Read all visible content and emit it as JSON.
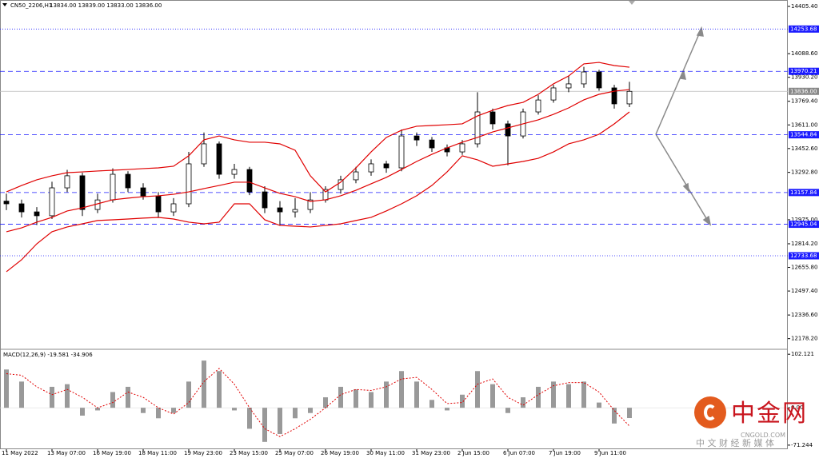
{
  "header": {
    "symbol": "CN50_2206,H1",
    "ohlc": "13834.00 13839.00 13833.00 13836.00"
  },
  "watermark": {
    "logo": "中金网",
    "site": "CNGOLD.COM",
    "tagline": "中 文 财 经 新 媒 体"
  },
  "chart_data": {
    "type": "candlestick",
    "categories": [
      "11 May 2022",
      null,
      null,
      "13 May 07:00",
      null,
      null,
      "16 May 19:00",
      null,
      null,
      "18 May 11:00",
      null,
      null,
      "19 May 23:00",
      null,
      null,
      "23 May 15:00",
      null,
      null,
      "25 May 07:00",
      null,
      null,
      "26 May 19:00",
      null,
      null,
      "30 May 11:00",
      null,
      null,
      "31 May 23:00",
      null,
      null,
      "2 Jun 15:00",
      null,
      null,
      "6 Jun 07:00",
      null,
      null,
      "7 Jun 19:00",
      null,
      null,
      "9 Jun 11:00",
      null,
      null
    ],
    "open": [
      13100,
      13082,
      13028,
      13002,
      13189,
      13270,
      13044,
      13108,
      13280,
      13189,
      13135,
      13028,
      13082,
      13350,
      13484,
      13280,
      13312,
      13162,
      13055,
      13028,
      13044,
      13108,
      13178,
      13243,
      13296,
      13350,
      13323,
      13537,
      13510,
      13457,
      13430,
      13484,
      13698,
      13618,
      13537,
      13698,
      13778,
      13859,
      13886,
      13966,
      13859,
      13752
    ],
    "high": [
      13150,
      13110,
      13060,
      13230,
      13310,
      13290,
      13150,
      13320,
      13300,
      13220,
      13160,
      13120,
      13430,
      13560,
      13500,
      13350,
      13330,
      13200,
      13100,
      13120,
      13160,
      13200,
      13270,
      13330,
      13380,
      13370,
      13580,
      13560,
      13530,
      13480,
      13510,
      13830,
      13720,
      13640,
      13720,
      13810,
      13880,
      13940,
      14000,
      13980,
      13880,
      13900
    ],
    "low": [
      13040,
      12990,
      12940,
      12980,
      13160,
      13000,
      13020,
      13090,
      13160,
      13110,
      12990,
      13000,
      13060,
      13330,
      13250,
      13250,
      13140,
      13020,
      12940,
      12990,
      13020,
      13090,
      13150,
      13220,
      13270,
      13290,
      13300,
      13470,
      13430,
      13400,
      13410,
      13460,
      13580,
      13340,
      13520,
      13680,
      13760,
      13830,
      13860,
      13840,
      13720,
      13730
    ],
    "close": [
      13082,
      13028,
      13002,
      13189,
      13270,
      13044,
      13108,
      13280,
      13189,
      13135,
      13028,
      13082,
      13350,
      13484,
      13280,
      13312,
      13162,
      13055,
      13028,
      13044,
      13108,
      13178,
      13243,
      13296,
      13350,
      13323,
      13537,
      13510,
      13457,
      13430,
      13484,
      13698,
      13618,
      13537,
      13698,
      13778,
      13859,
      13886,
      13966,
      13859,
      13752,
      13836
    ],
    "candle_color": "#000000",
    "bands": {
      "color": "#e00000",
      "upper": [
        13162,
        13205,
        13243,
        13270,
        13291,
        13296,
        13302,
        13307,
        13312,
        13318,
        13323,
        13334,
        13404,
        13511,
        13537,
        13511,
        13495,
        13495,
        13484,
        13441,
        13270,
        13162,
        13227,
        13323,
        13430,
        13527,
        13575,
        13602,
        13607,
        13612,
        13618,
        13671,
        13709,
        13741,
        13762,
        13816,
        13886,
        13939,
        14020,
        14030,
        14009,
        13998
      ],
      "middle": [
        12895,
        12921,
        12959,
        12991,
        13034,
        13055,
        13082,
        13109,
        13120,
        13130,
        13136,
        13146,
        13162,
        13184,
        13205,
        13227,
        13227,
        13189,
        13152,
        13130,
        13098,
        13109,
        13136,
        13173,
        13216,
        13259,
        13312,
        13366,
        13414,
        13457,
        13495,
        13527,
        13564,
        13591,
        13618,
        13645,
        13682,
        13725,
        13779,
        13816,
        13837,
        13848
      ],
      "lower": [
        12627,
        12707,
        12814,
        12895,
        12927,
        12948,
        12970,
        12975,
        12980,
        12986,
        12991,
        12980,
        12959,
        12948,
        12959,
        13082,
        13082,
        12975,
        12937,
        12932,
        12927,
        12937,
        12948,
        12970,
        12991,
        13034,
        13082,
        13136,
        13205,
        13296,
        13404,
        13377,
        13334,
        13350,
        13366,
        13387,
        13430,
        13484,
        13511,
        13548,
        13618,
        13698
      ]
    },
    "ylim": [
      12117.5,
      14448.3
    ],
    "yticks": [
      {
        "value": 14405.4,
        "label": "14405.40"
      },
      {
        "value": 14088.6,
        "label": "14088.60"
      },
      {
        "value": 13930.2,
        "label": "13930.20"
      },
      {
        "value": 13769.4,
        "label": "13769.40"
      },
      {
        "value": 13611,
        "label": "13611.00"
      },
      {
        "value": 13452.6,
        "label": "13452.60"
      },
      {
        "value": 13292.8,
        "label": "13292.80"
      },
      {
        "value": 12975,
        "label": "12975.00"
      },
      {
        "value": 12814.2,
        "label": "12814.20"
      },
      {
        "value": 12655.8,
        "label": "12655.80"
      },
      {
        "value": 12497.4,
        "label": "12497.40"
      },
      {
        "value": 12336.6,
        "label": "12336.60"
      },
      {
        "value": 12178.2,
        "label": "12178.20"
      }
    ],
    "levels": [
      {
        "value": 14253.68,
        "style": "dotted"
      },
      {
        "value": 13970.21,
        "style": "dashed"
      },
      {
        "value": 13544.84,
        "style": "dashed"
      },
      {
        "value": 13157.84,
        "style": "dashed"
      },
      {
        "value": 12945.04,
        "style": "dashed"
      },
      {
        "value": 12733.68,
        "style": "dotted"
      }
    ],
    "level_color": "#1a1aff",
    "current": {
      "value": 13836,
      "label": "13836.00"
    },
    "macd": {
      "label": "MACD(12,26,9) -19.581 -34.906",
      "bar_color": "#999999",
      "signal_color": "#e00000",
      "values": [
        73,
        50,
        0,
        40,
        45,
        -15,
        -5,
        30,
        40,
        -10,
        -20,
        -10,
        50,
        90,
        70,
        -5,
        -40,
        -65,
        -50,
        -20,
        -10,
        20,
        40,
        35,
        30,
        50,
        70,
        50,
        15,
        -5,
        25,
        70,
        45,
        -10,
        20,
        40,
        50,
        45,
        50,
        10,
        -30,
        -19.581
      ],
      "signal": [
        65,
        62,
        40,
        25,
        35,
        20,
        0,
        10,
        30,
        20,
        0,
        -12,
        10,
        50,
        75,
        45,
        0,
        -40,
        -55,
        -40,
        -22,
        0,
        25,
        35,
        33,
        40,
        55,
        58,
        35,
        8,
        10,
        45,
        55,
        20,
        5,
        25,
        42,
        48,
        48,
        30,
        -5,
        -34.906
      ],
      "ylim": [
        -79,
        110
      ],
      "yticks": [
        102.121,
        {
          "value": 0,
          "label": "0.00"
        },
        -71.244
      ]
    }
  }
}
